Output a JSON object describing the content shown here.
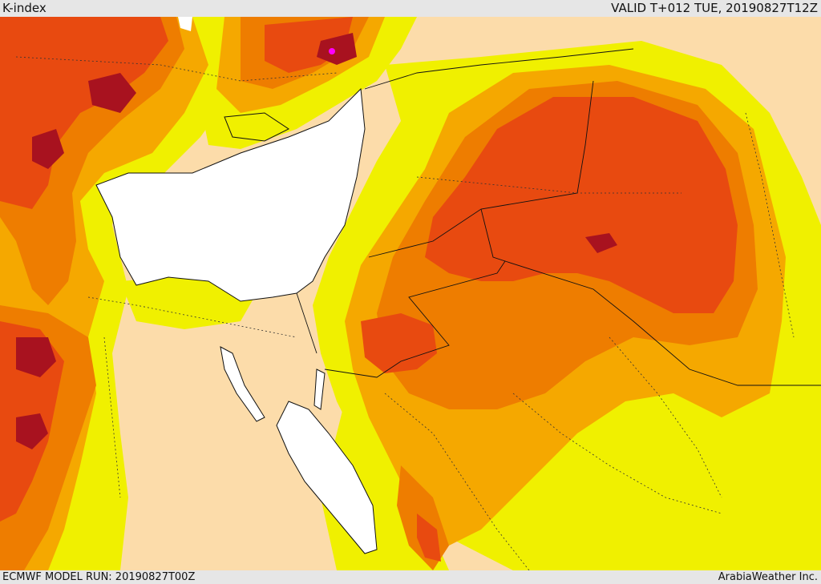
{
  "header": {
    "title": "K-index",
    "valid_time": "VALID T+012 TUE, 20190827T12Z"
  },
  "footer": {
    "model_run": "ECMWF MODEL RUN: 20190827T00Z",
    "credit": "ArabiaWeather Inc."
  },
  "colors": {
    "land_low": "#fcdcaa",
    "level_1": "#f0f000",
    "level_2": "#f5a800",
    "level_3": "#ee7d00",
    "level_4": "#e84a10",
    "level_5": "#a8121f",
    "level_6": "#ff00ff",
    "water": "#ffffff",
    "page_bar": "#e6e6e6"
  }
}
